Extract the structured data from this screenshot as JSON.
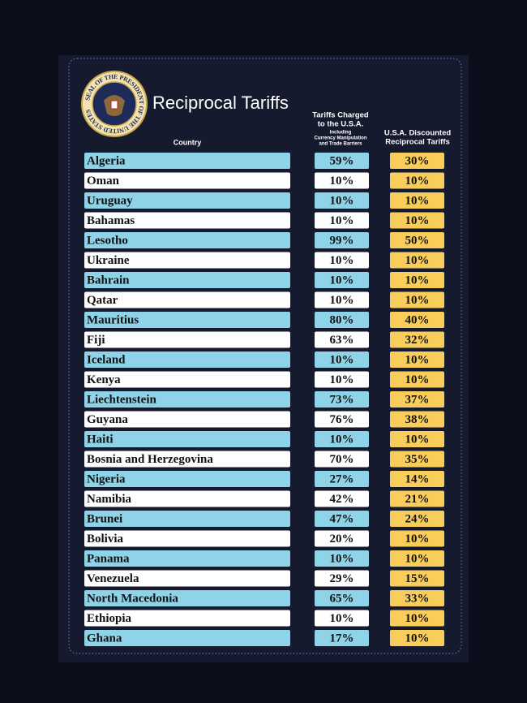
{
  "header": {
    "title": "Reciprocal Tariffs",
    "seal_text": "SEAL OF THE PRESIDENT OF THE UNITED STATES"
  },
  "table": {
    "columns": [
      {
        "label": "Country"
      },
      {
        "label_lines": [
          "Tariffs Charged",
          "to the U.S.A."
        ],
        "note_lines": [
          "Including",
          "Currency Manipulation",
          "and Trade Barriers"
        ]
      },
      {
        "label_lines": [
          "U.S.A. Discounted",
          "Reciprocal Tariffs"
        ]
      }
    ],
    "rows": [
      [
        "Algeria",
        "59%",
        "30%"
      ],
      [
        "Oman",
        "10%",
        "10%"
      ],
      [
        "Uruguay",
        "10%",
        "10%"
      ],
      [
        "Bahamas",
        "10%",
        "10%"
      ],
      [
        "Lesotho",
        "99%",
        "50%"
      ],
      [
        "Ukraine",
        "10%",
        "10%"
      ],
      [
        "Bahrain",
        "10%",
        "10%"
      ],
      [
        "Qatar",
        "10%",
        "10%"
      ],
      [
        "Mauritius",
        "80%",
        "40%"
      ],
      [
        "Fiji",
        "63%",
        "32%"
      ],
      [
        "Iceland",
        "10%",
        "10%"
      ],
      [
        "Kenya",
        "10%",
        "10%"
      ],
      [
        "Liechtenstein",
        "73%",
        "37%"
      ],
      [
        "Guyana",
        "76%",
        "38%"
      ],
      [
        "Haiti",
        "10%",
        "10%"
      ],
      [
        "Bosnia and Herzegovina",
        "70%",
        "35%"
      ],
      [
        "Nigeria",
        "27%",
        "14%"
      ],
      [
        "Namibia",
        "42%",
        "21%"
      ],
      [
        "Brunei",
        "47%",
        "24%"
      ],
      [
        "Bolivia",
        "20%",
        "10%"
      ],
      [
        "Panama",
        "10%",
        "10%"
      ],
      [
        "Venezuela",
        "29%",
        "15%"
      ],
      [
        "North Macedonia",
        "65%",
        "33%"
      ],
      [
        "Ethiopia",
        "10%",
        "10%"
      ],
      [
        "Ghana",
        "17%",
        "10%"
      ]
    ]
  }
}
